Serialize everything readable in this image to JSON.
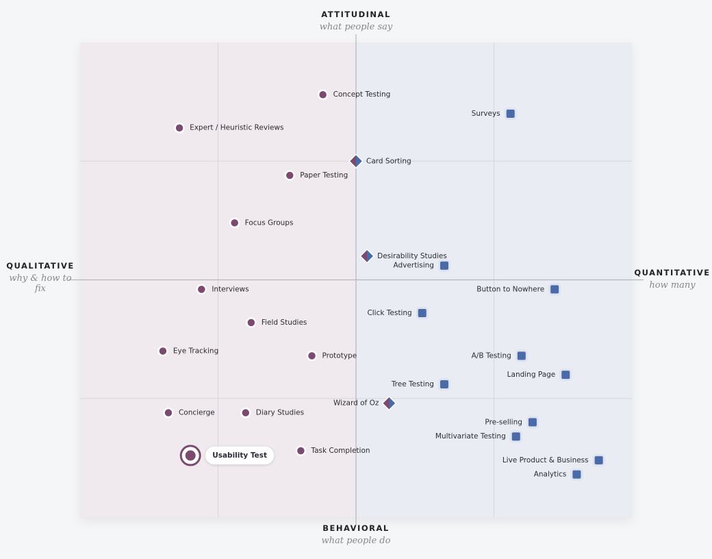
{
  "chart_data": {
    "type": "scatter",
    "xlim": [
      -2,
      2
    ],
    "ylim": [
      -2,
      2
    ],
    "grid": true,
    "axis_labels": {
      "top": {
        "title": "ATTITUDINAL",
        "subtitle": "what people say"
      },
      "bottom": {
        "title": "BEHAVIORAL",
        "subtitle": "what people do"
      },
      "left": {
        "title": "QUALITATIVE",
        "subtitle": "why & how to fix"
      },
      "right": {
        "title": "QUANTITATIVE",
        "subtitle": "how many"
      }
    },
    "series": [
      {
        "marker": "circle",
        "color": "#7b4a6f",
        "label_side": "right",
        "highlight_index": 9,
        "labels": [
          "Concept Testing",
          "Expert / Heuristic Reviews",
          "Paper Testing",
          "Focus Groups",
          "Interviews",
          "Field Studies",
          "Eye Tracking",
          "Prototype",
          "Concierge",
          "Usability Test",
          "Diary Studies",
          "Task Completion"
        ],
        "x": [
          -0.24,
          -1.28,
          -0.48,
          -0.88,
          -1.12,
          -0.76,
          -1.4,
          -0.32,
          -1.36,
          -1.2,
          -0.8,
          -0.4
        ],
        "y": [
          1.56,
          1.28,
          0.88,
          0.48,
          -0.08,
          -0.36,
          -0.6,
          -0.64,
          -1.12,
          -1.48,
          -1.12,
          -1.44
        ]
      },
      {
        "marker": "square",
        "color": "#4a6aa8",
        "label_side": "left",
        "labels": [
          "Surveys",
          "Advertising",
          "Button to Nowhere",
          "Click Testing",
          "A/B Testing",
          "Landing Page",
          "Tree Testing",
          "Pre-selling",
          "Multivariate Testing",
          "Live Product & Business",
          "Analytics"
        ],
        "x": [
          1.12,
          0.64,
          1.44,
          0.48,
          1.2,
          1.52,
          0.64,
          1.28,
          1.16,
          1.76,
          1.6
        ],
        "y": [
          1.4,
          0.12,
          -0.08,
          -0.28,
          -0.64,
          -0.8,
          -0.88,
          -1.2,
          -1.32,
          -1.52,
          -1.64
        ]
      },
      {
        "marker": "diamond",
        "colors": [
          "#7b4a6f",
          "#4a6aa8"
        ],
        "label_side": "right",
        "labels": [
          "Card Sorting",
          "Desirability Studies",
          "Wizard of Oz"
        ],
        "x": [
          0.0,
          0.08,
          0.24
        ],
        "y": [
          1.0,
          0.2,
          -1.04
        ],
        "label_sides": [
          "right",
          "right",
          "left"
        ]
      }
    ]
  }
}
